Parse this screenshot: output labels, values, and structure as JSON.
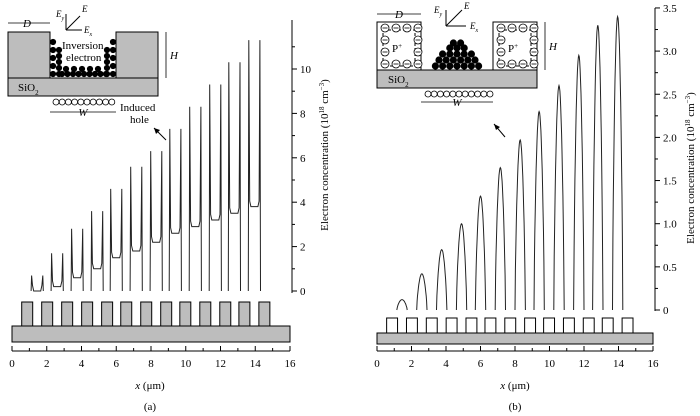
{
  "panels": [
    {
      "id": "a",
      "panel_label": "(a)",
      "xlabel_var": "x",
      "xlabel_unit": " (μm)",
      "ylabel_main": "Electron concentration (10",
      "ylabel_exp": "18",
      "ylabel_unit_tail": " cm",
      "ylabel_unit_exp": "−3",
      "ylabel_close": ")",
      "xticks": [
        "0",
        "2",
        "4",
        "6",
        "8",
        "10",
        "12",
        "14",
        "16"
      ],
      "yticks": [
        "0",
        "2",
        "4",
        "6",
        "8",
        "10"
      ],
      "inset": {
        "D": "D",
        "H": "H",
        "W": "W",
        "Ey": "E",
        "Ey_sub": "y",
        "E": "E",
        "Ex": "E",
        "Ex_sub": "x",
        "inversion_line1": "Inversion",
        "inversion_line2": "electron",
        "induced_line1": "Induced",
        "induced_line2": "hole",
        "sio2": "SiO",
        "sio2_sub": "2"
      }
    },
    {
      "id": "b",
      "panel_label": "(b)",
      "xlabel_var": "x",
      "xlabel_unit": " (μm)",
      "ylabel_main": "Electron concentration (10",
      "ylabel_exp": "18",
      "ylabel_unit_tail": " cm",
      "ylabel_unit_exp": "−3",
      "ylabel_close": ")",
      "xticks": [
        "0",
        "2",
        "4",
        "6",
        "8",
        "10",
        "12",
        "14",
        "16"
      ],
      "yticks": [
        "0",
        "0.5",
        "1.0",
        "1.5",
        "2.0",
        "2.5",
        "3.0",
        "3.5"
      ],
      "inset": {
        "D": "D",
        "H": "H",
        "W": "W",
        "Ey": "E",
        "Ey_sub": "y",
        "E": "E",
        "Ex": "E",
        "Ex_sub": "x",
        "p_plus": "P",
        "p_plus_sup": "+",
        "sio2": "SiO",
        "sio2_sub": "2"
      }
    }
  ],
  "chart_data": [
    {
      "type": "line",
      "panel": "a",
      "xlabel": "x (μm)",
      "ylabel": "Electron concentration (10^18 cm^-3)",
      "xlim": [
        0,
        16
      ],
      "ylim": [
        0,
        11
      ],
      "grid": false,
      "series": [
        {
          "kind": "spike-pairs-per-gap",
          "gap_centers_x": [
            1.45,
            2.6,
            3.75,
            4.9,
            6.0,
            7.15,
            8.3,
            9.4,
            10.55,
            11.7,
            12.8,
            13.95
          ],
          "peak_heights": [
            0.7,
            1.7,
            2.8,
            3.6,
            4.6,
            5.6,
            6.3,
            7.3,
            8.3,
            9.3,
            10.3,
            11.3
          ],
          "baseline_levels": [
            0.0,
            0.2,
            0.6,
            1.0,
            1.5,
            1.8,
            2.2,
            2.6,
            2.9,
            3.2,
            3.5,
            3.8
          ]
        }
      ]
    },
    {
      "type": "line",
      "panel": "b",
      "xlabel": "x (μm)",
      "ylabel": "Electron concentration (10^18 cm^-3)",
      "xlim": [
        0,
        16
      ],
      "ylim": [
        0,
        3.5
      ],
      "grid": false,
      "series": [
        {
          "kind": "single-peak-per-gap",
          "gap_centers_x": [
            1.45,
            2.6,
            3.75,
            4.9,
            6.0,
            7.15,
            8.3,
            9.4,
            10.55,
            11.7,
            12.8,
            13.95
          ],
          "peak_heights": [
            0.12,
            0.42,
            0.7,
            1.0,
            1.32,
            1.65,
            1.97,
            2.3,
            2.6,
            2.95,
            3.3,
            3.4
          ]
        }
      ]
    }
  ]
}
